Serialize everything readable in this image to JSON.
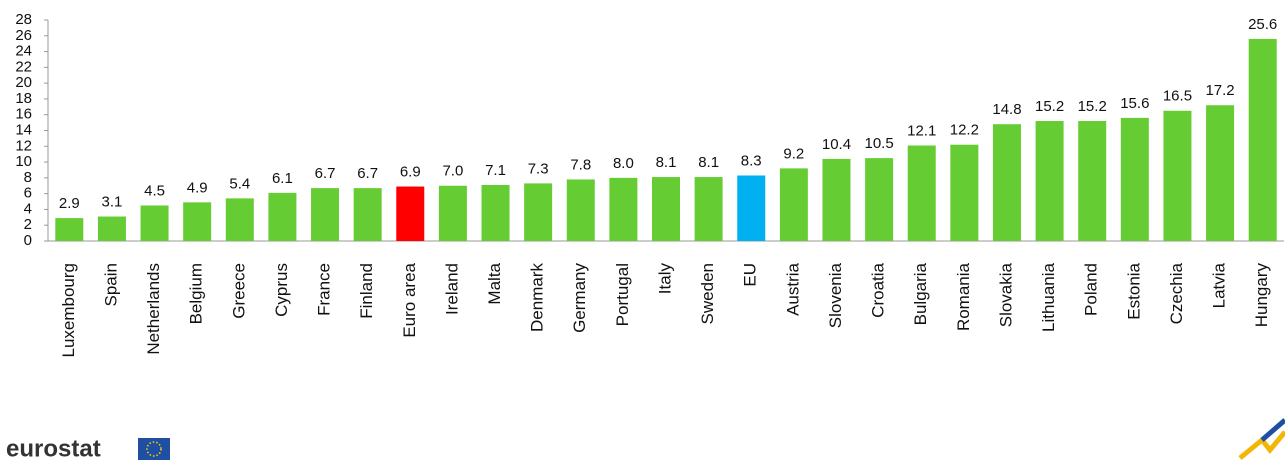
{
  "chart_data": {
    "type": "bar",
    "categories": [
      "Luxembourg",
      "Spain",
      "Netherlands",
      "Belgium",
      "Greece",
      "Cyprus",
      "France",
      "Finland",
      "Euro area",
      "Ireland",
      "Malta",
      "Denmark",
      "Germany",
      "Portugal",
      "Italy",
      "Sweden",
      "EU",
      "Austria",
      "Slovenia",
      "Croatia",
      "Bulgaria",
      "Romania",
      "Slovakia",
      "Lithuania",
      "Poland",
      "Estonia",
      "Czechia",
      "Latvia",
      "Hungary"
    ],
    "values": [
      2.9,
      3.1,
      4.5,
      4.9,
      5.4,
      6.1,
      6.7,
      6.7,
      6.9,
      7.0,
      7.1,
      7.3,
      7.8,
      8.0,
      8.1,
      8.1,
      8.3,
      9.2,
      10.4,
      10.5,
      12.1,
      12.2,
      14.8,
      15.2,
      15.2,
      15.6,
      16.5,
      17.2,
      25.6
    ],
    "value_labels": [
      "2.9",
      "3.1",
      "4.5",
      "4.9",
      "5.4",
      "6.1",
      "6.7",
      "6.7",
      "6.9",
      "7.0",
      "7.1",
      "7.3",
      "7.8",
      "8.0",
      "8.1",
      "8.1",
      "8.3",
      "9.2",
      "10.4",
      "10.5",
      "12.1",
      "12.2",
      "14.8",
      "15.2",
      "15.2",
      "15.6",
      "16.5",
      "17.2",
      "25.6"
    ],
    "colors": [
      "#66cc33",
      "#66cc33",
      "#66cc33",
      "#66cc33",
      "#66cc33",
      "#66cc33",
      "#66cc33",
      "#66cc33",
      "#ff0000",
      "#66cc33",
      "#66cc33",
      "#66cc33",
      "#66cc33",
      "#66cc33",
      "#66cc33",
      "#66cc33",
      "#00b0f0",
      "#66cc33",
      "#66cc33",
      "#66cc33",
      "#66cc33",
      "#66cc33",
      "#66cc33",
      "#66cc33",
      "#66cc33",
      "#66cc33",
      "#66cc33",
      "#66cc33",
      "#66cc33"
    ],
    "ylim": [
      0,
      28
    ],
    "yticks": [
      0,
      2,
      4,
      6,
      8,
      10,
      12,
      14,
      16,
      18,
      20,
      22,
      24,
      26,
      28
    ],
    "grid": false
  },
  "logo": "eurostat"
}
